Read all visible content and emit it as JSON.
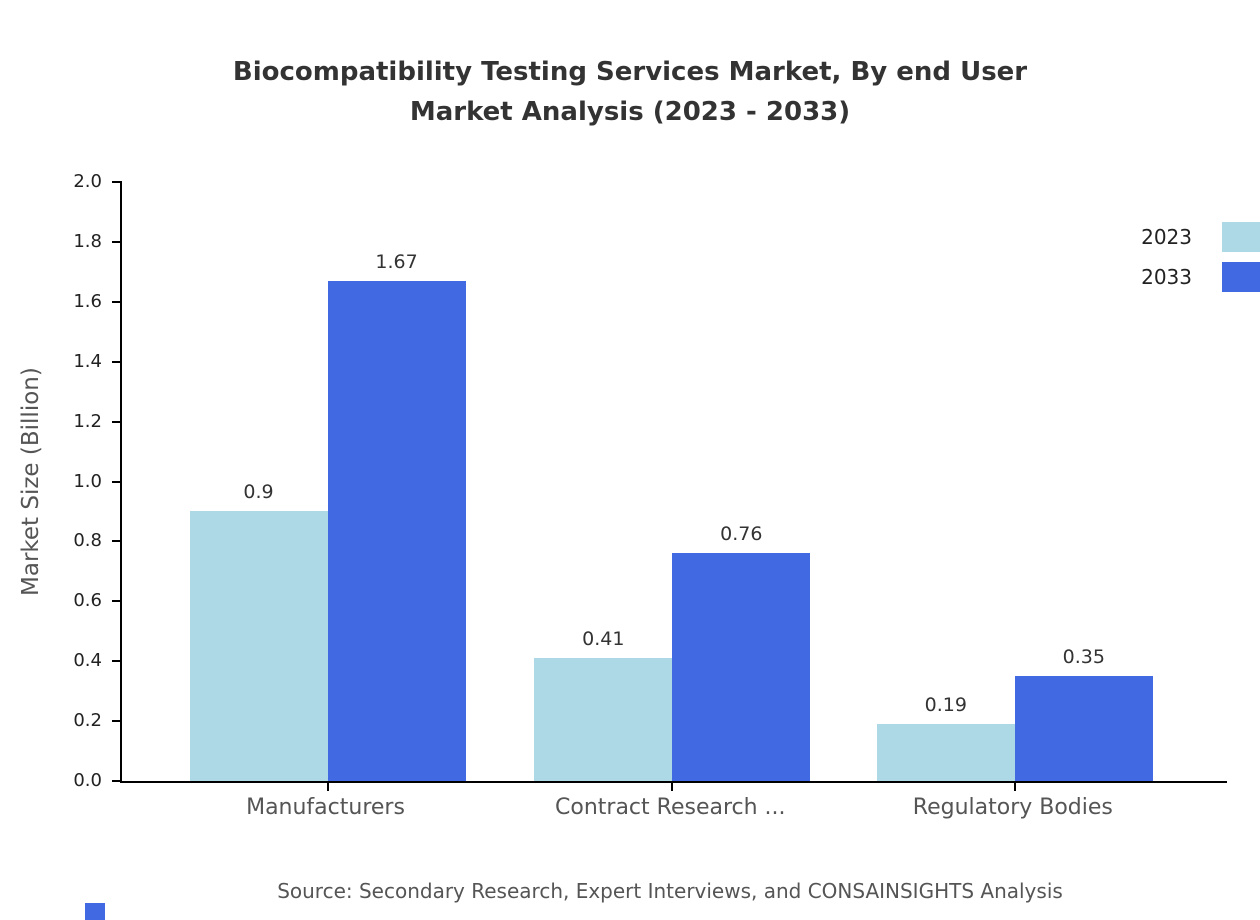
{
  "title": {
    "line1": "Biocompatibility Testing Services Market, By end User",
    "line2": "Market Analysis (2023 - 2033)"
  },
  "source_note": "Source: Secondary Research, Expert Interviews, and CONSAINSIGHTS Analysis",
  "colors": {
    "series_2023": "#ADD8E6",
    "series_2033": "#4169E1",
    "axis_line": "#000000",
    "title_text": "#333333",
    "muted_text": "#555555",
    "value_text": "#333333",
    "background": "#FFFFFF"
  },
  "legend": {
    "items": [
      {
        "label": "2023",
        "color": "#ADD8E6"
      },
      {
        "label": "2033",
        "color": "#4169E1"
      }
    ]
  },
  "chart_data": {
    "type": "bar",
    "title": "Biocompatibility Testing Services Market, By end User Market Analysis (2023 - 2033)",
    "categories": [
      "Manufacturers",
      "Contract Research ...",
      "Regulatory Bodies"
    ],
    "series": [
      {
        "name": "2023",
        "color": "#ADD8E6",
        "values": [
          0.9,
          0.41,
          0.19
        ]
      },
      {
        "name": "2033",
        "color": "#4169E1",
        "values": [
          1.67,
          0.76,
          0.35
        ]
      }
    ],
    "xlabel": "",
    "ylabel": "Market Size (Billion)",
    "ylim": [
      0.0,
      2.0
    ],
    "ytick_step": 0.2,
    "grid": false,
    "legend_position": "top-right",
    "bar_value_labels": true
  }
}
